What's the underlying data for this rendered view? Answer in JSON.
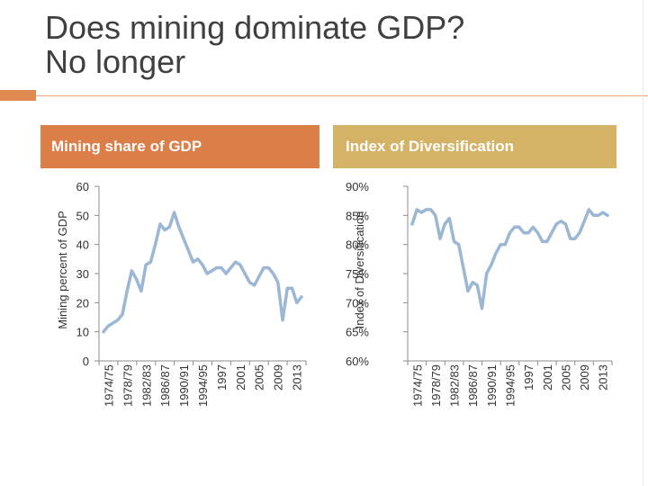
{
  "slide": {
    "title_line1": "Does mining dominate GDP?",
    "title_line2": "No longer",
    "accent_color": "#e08a52"
  },
  "chart_data": [
    {
      "type": "line",
      "title": "Mining share of GDP",
      "header_color": "#dc7e47",
      "line_color": "#9bb7d4",
      "ylabel": "Mining percent of GDP",
      "xlabel": "",
      "ylim": [
        0,
        60
      ],
      "yticks": [
        "0",
        "10",
        "20",
        "30",
        "40",
        "50",
        "60"
      ],
      "xtick_labels": [
        "1974/75",
        "1978/79",
        "1982/83",
        "1986/87",
        "1990/91",
        "1994/95",
        "1997",
        "2001",
        "2005",
        "2009",
        "2013"
      ],
      "grid": false,
      "series": [
        {
          "values": [
            10,
            12,
            13,
            14,
            16,
            24,
            31,
            28,
            24,
            33,
            34,
            40,
            47,
            45,
            46,
            51,
            46,
            42,
            38,
            34,
            35,
            33,
            30,
            31,
            32,
            32,
            30,
            32,
            34,
            33,
            30,
            27,
            26,
            29,
            32,
            32,
            30,
            27,
            14,
            25,
            25,
            20,
            22
          ]
        }
      ]
    },
    {
      "type": "line",
      "title": "Index of Diversification",
      "header_color": "#d4b266",
      "line_color": "#9bb7d4",
      "ylabel": "Index of Diversification",
      "xlabel": "",
      "ylim": [
        60,
        90
      ],
      "yticks": [
        "60%",
        "65%",
        "70%",
        "75%",
        "80%",
        "85%",
        "90%"
      ],
      "xtick_labels": [
        "1974/75",
        "1978/79",
        "1982/83",
        "1986/87",
        "1990/91",
        "1994/95",
        "1997",
        "2001",
        "2005",
        "2009",
        "2013"
      ],
      "grid": false,
      "series": [
        {
          "values": [
            83.5,
            86,
            85.5,
            86,
            86,
            85,
            81,
            83.5,
            84.5,
            80.5,
            80,
            76,
            72,
            73.5,
            73,
            69,
            75,
            76.5,
            78.5,
            80,
            80,
            82,
            83,
            83,
            82,
            82,
            83,
            82,
            80.5,
            80.5,
            82,
            83.5,
            84,
            83.5,
            81,
            81,
            82,
            84,
            86,
            85,
            85,
            85.5,
            85
          ]
        }
      ]
    }
  ]
}
